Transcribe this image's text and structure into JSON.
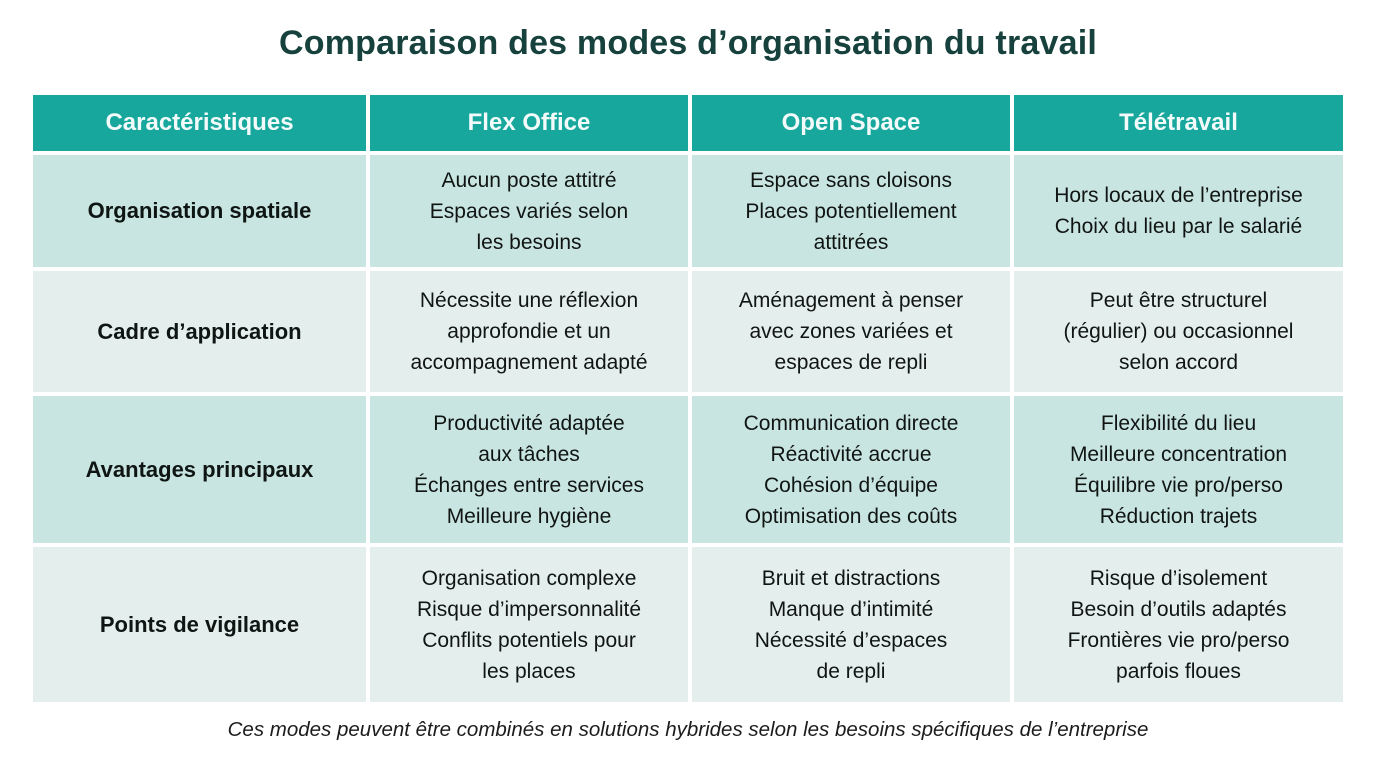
{
  "title": "Comparaison des modes d’organisation du travail",
  "footer_note": "Ces modes peuvent être combinés en solutions hybrides selon les besoins spécifiques de l’entreprise",
  "colors": {
    "header_teal": "#17A79D",
    "row_mint": "#C9E5E1",
    "row_light": "#E4EFED",
    "title_dark_teal": "#16413C",
    "header_text": "#F3FBFA",
    "body_text": "#101513",
    "background": "#FFFFFF"
  },
  "table": {
    "headers": [
      "Caractéristiques",
      "Flex Office",
      "Open Space",
      "Télétravail"
    ],
    "rows": [
      {
        "label": "Organisation spatiale",
        "cells": [
          "Aucun poste attitré\nEspaces variés selon\nles besoins",
          "Espace sans cloisons\nPlaces potentiellement\nattitrées",
          "Hors locaux de l’entreprise\nChoix du lieu par le salarié"
        ]
      },
      {
        "label": "Cadre d’application",
        "cells": [
          "Nécessite une réflexion\napprofondie et un\naccompagnement adapté",
          "Aménagement à penser\navec zones variées et\nespaces de repli",
          "Peut être structurel\n(régulier) ou occasionnel\nselon accord"
        ]
      },
      {
        "label": "Avantages principaux",
        "cells": [
          "Productivité adaptée\naux tâches\nÉchanges entre services\nMeilleure hygiène",
          "Communication directe\nRéactivité accrue\nCohésion d’équipe\nOptimisation des coûts",
          "Flexibilité du lieu\nMeilleure concentration\nÉquilibre vie pro/perso\nRéduction trajets"
        ]
      },
      {
        "label": "Points de vigilance",
        "cells": [
          "Organisation complexe\nRisque d’impersonnalité\nConflits potentiels pour\nles places",
          "Bruit et distractions\nManque d’intimité\nNécessité d’espaces\nde repli",
          "Risque d’isolement\nBesoin d’outils adaptés\nFrontières vie pro/perso\nparfois floues"
        ]
      }
    ]
  }
}
